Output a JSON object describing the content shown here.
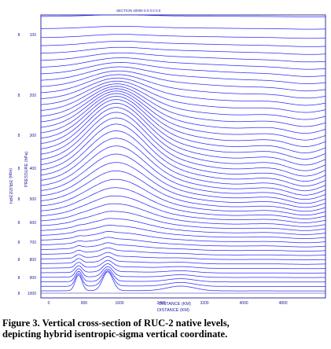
{
  "chart_data": {
    "type": "line",
    "header": "SECTION 40000 0.0 0.0 0.0",
    "ylabel": "PRESSURE (hPa)",
    "ylabel_mirror": "(eqa) ЭЯUƧƧЭЯЧ",
    "xlabel": "DISTANCE (KM)",
    "xlabel_top": "DISTANCE (KM)",
    "x_ticks": [
      "0",
      "800",
      "1600",
      "2400",
      "3200",
      "4000",
      "4800"
    ],
    "y_ticks": [
      "100",
      "200",
      "300",
      "400",
      "500",
      "600",
      "700",
      "800",
      "900",
      "1000"
    ],
    "y_ticks_mirror": [
      "8",
      "8",
      "8",
      "8",
      "8",
      "8",
      "8",
      "8",
      "8",
      "8"
    ],
    "xlim": [
      0,
      5600
    ],
    "ylim": [
      1000,
      50
    ],
    "line_color": "#2b2bff",
    "axis_color": "#1a1a9a",
    "description": "50 hybrid isentropic-sigma vertical levels"
  },
  "caption": {
    "line1": "Figure 3.  Vertical cross-section of RUC-2 native levels,",
    "line2": "depicting hybrid isentropic-sigma vertical coordinate."
  }
}
